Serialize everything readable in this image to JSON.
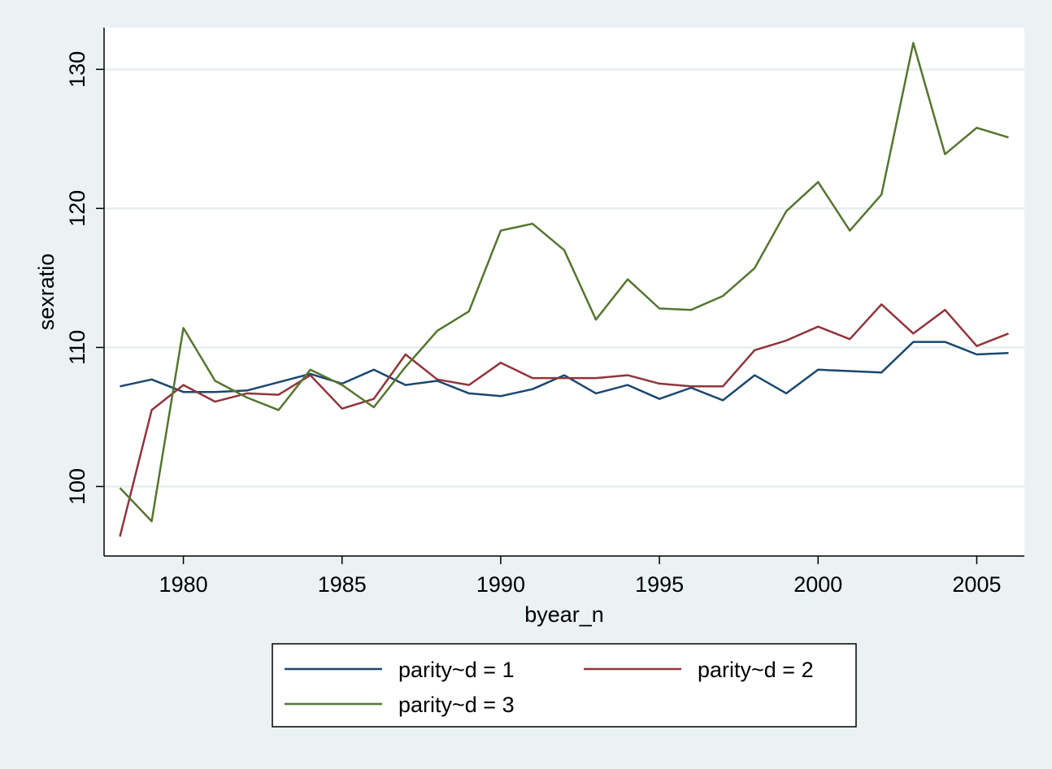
{
  "chart_data": {
    "type": "line",
    "title": "",
    "xlabel": "byear_n",
    "ylabel": "sexratio",
    "xlim": [
      1977.5,
      2006.5
    ],
    "ylim": [
      95,
      133
    ],
    "xticks": [
      1980,
      1985,
      1990,
      1995,
      2000,
      2005
    ],
    "yticks": [
      100,
      110,
      120,
      130
    ],
    "x": [
      1978,
      1979,
      1980,
      1981,
      1982,
      1983,
      1984,
      1985,
      1986,
      1987,
      1988,
      1989,
      1990,
      1991,
      1992,
      1993,
      1994,
      1995,
      1996,
      1997,
      1998,
      1999,
      2000,
      2001,
      2002,
      2003,
      2004,
      2005,
      2006
    ],
    "grid": true,
    "legend_position": "bottom",
    "series": [
      {
        "name": "parity~d = 1",
        "color": "#1a476f",
        "values": [
          107.2,
          107.7,
          106.8,
          106.8,
          106.9,
          107.5,
          108.1,
          107.4,
          108.4,
          107.3,
          107.6,
          106.7,
          106.5,
          107.0,
          108.0,
          106.7,
          107.3,
          106.3,
          107.1,
          106.2,
          108.0,
          106.7,
          108.4,
          108.3,
          108.2,
          110.4,
          110.4,
          109.5,
          109.6
        ]
      },
      {
        "name": "parity~d = 2",
        "color": "#90353b",
        "values": [
          96.4,
          105.5,
          107.3,
          106.1,
          106.7,
          106.6,
          108.0,
          105.6,
          106.3,
          109.5,
          107.7,
          107.3,
          108.9,
          107.8,
          107.8,
          107.8,
          108.0,
          107.4,
          107.2,
          107.2,
          109.8,
          110.5,
          111.5,
          110.6,
          113.1,
          111.0,
          112.7,
          110.1,
          111.0
        ]
      },
      {
        "name": "parity~d = 3",
        "color": "#55752f",
        "values": [
          99.9,
          97.5,
          111.4,
          107.6,
          106.4,
          105.5,
          108.4,
          107.3,
          105.7,
          108.6,
          111.2,
          112.6,
          118.4,
          118.9,
          117.0,
          112.0,
          114.9,
          112.8,
          112.7,
          113.7,
          115.7,
          119.8,
          121.9,
          118.4,
          121.0,
          131.9,
          123.9,
          125.8,
          125.1
        ]
      }
    ]
  }
}
